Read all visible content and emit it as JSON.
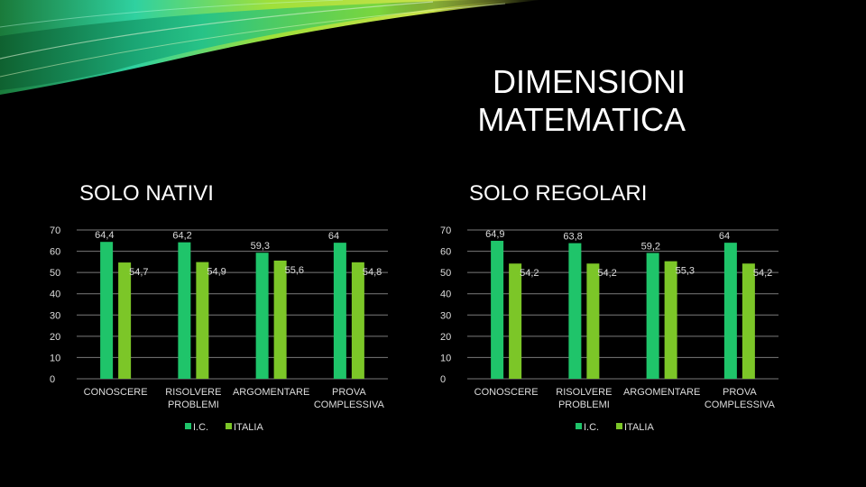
{
  "title": [
    "DIMENSIONI",
    "MATEMATICA"
  ],
  "colors": {
    "ic": "#1fc46a",
    "italia": "#7cc628",
    "grid": "#7a7a7a",
    "text": "#dddddd"
  },
  "chart_data": [
    {
      "type": "bar",
      "title": "SOLO NATIVI",
      "categories": [
        [
          "CONOSCERE"
        ],
        [
          "RISOLVERE",
          "PROBLEMI"
        ],
        [
          "ARGOMENTARE"
        ],
        [
          "PROVA",
          "COMPLESSIVA"
        ]
      ],
      "series": [
        {
          "name": "I.C.",
          "values": [
            64.4,
            64.2,
            59.3,
            64
          ]
        },
        {
          "name": "ITALIA",
          "values": [
            54.7,
            54.9,
            55.6,
            54.8
          ]
        }
      ],
      "value_labels": [
        [
          "64,4",
          "64,2",
          "59,3",
          "64"
        ],
        [
          "54,7",
          "54,9",
          "55,6",
          "54,8"
        ]
      ],
      "yticks": [
        "0",
        "10",
        "20",
        "30",
        "40",
        "50",
        "60",
        "70"
      ],
      "ylim": [
        0,
        70
      ],
      "grid": true,
      "legend": "bottom"
    },
    {
      "type": "bar",
      "title": "SOLO REGOLARI",
      "categories": [
        [
          "CONOSCERE"
        ],
        [
          "RISOLVERE",
          "PROBLEMI"
        ],
        [
          "ARGOMENTARE"
        ],
        [
          "PROVA",
          "COMPLESSIVA"
        ]
      ],
      "series": [
        {
          "name": "I.C.",
          "values": [
            64.9,
            63.8,
            59.2,
            64
          ]
        },
        {
          "name": "ITALIA",
          "values": [
            54.2,
            54.2,
            55.3,
            54.2
          ]
        }
      ],
      "value_labels": [
        [
          "64,9",
          "63,8",
          "59,2",
          "64"
        ],
        [
          "54,2",
          "54,2",
          "55,3",
          "54,2"
        ]
      ],
      "yticks": [
        "0",
        "10",
        "20",
        "30",
        "40",
        "50",
        "60",
        "70"
      ],
      "ylim": [
        0,
        70
      ],
      "grid": true,
      "legend": "bottom"
    }
  ]
}
